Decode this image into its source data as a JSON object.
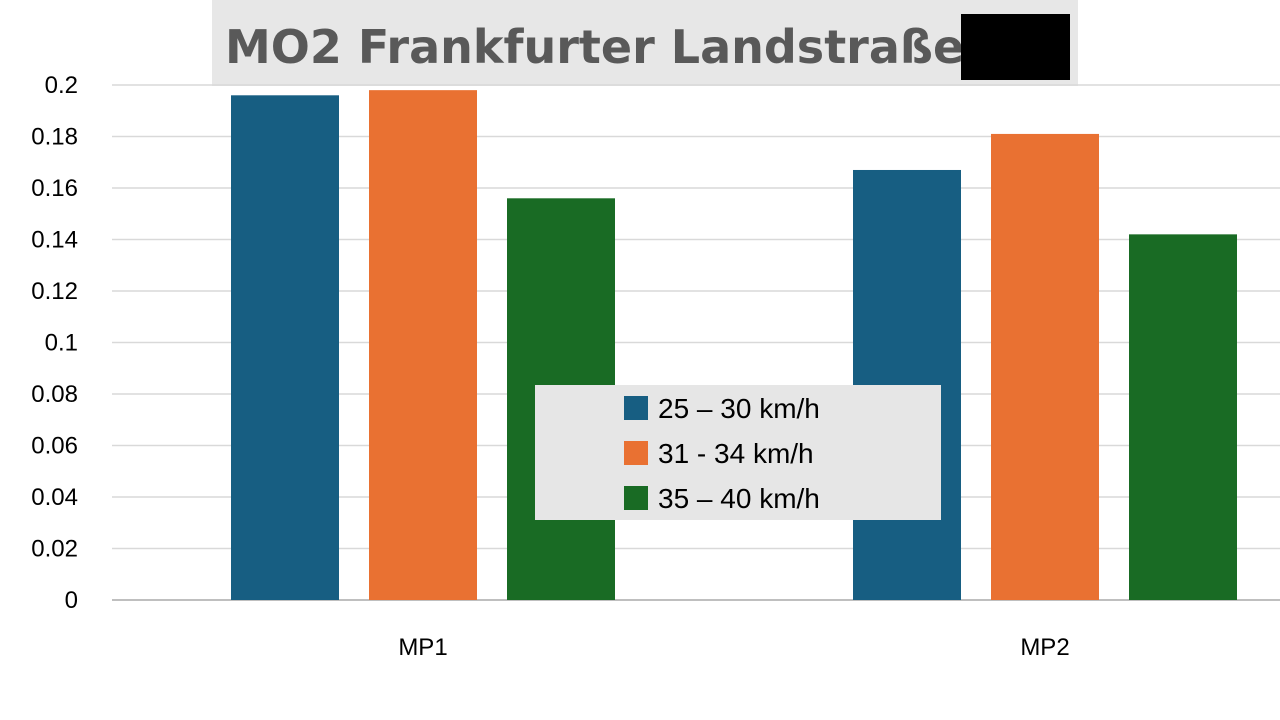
{
  "chart_data": {
    "type": "bar",
    "title": "MO2 Frankfurter  Landstraße",
    "title_redacted": true,
    "xlabel": "",
    "ylabel": "",
    "categories": [
      "MP1",
      "MP2"
    ],
    "series": [
      {
        "name": "25 – 30 km/h",
        "color": "#175e82",
        "values": [
          0.196,
          0.167
        ]
      },
      {
        "name": "31 - 34 km/h",
        "color": "#e97132",
        "values": [
          0.198,
          0.181
        ]
      },
      {
        "name": "35 – 40 km/h",
        "color": "#196b24",
        "values": [
          0.156,
          0.142
        ]
      }
    ],
    "ylim": [
      0,
      0.2
    ],
    "yticks": [
      "0",
      "0.02",
      "0.04",
      "0.06",
      "0.08",
      "0.1",
      "0.12",
      "0.14",
      "0.16",
      "0.18",
      "0.2"
    ],
    "grid": true,
    "legend_position": "center"
  }
}
